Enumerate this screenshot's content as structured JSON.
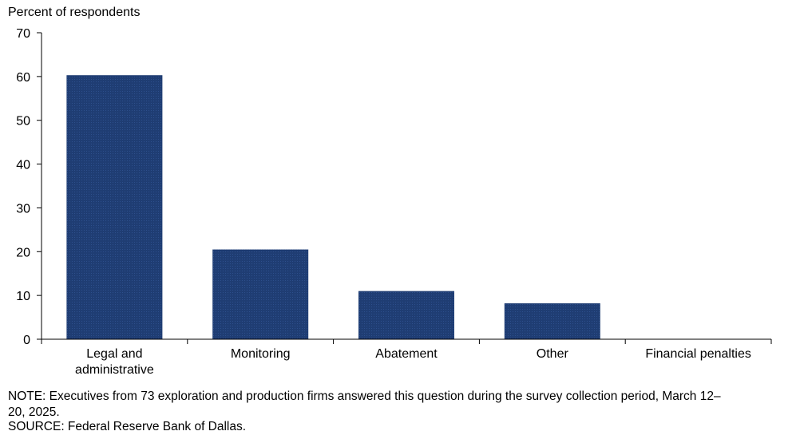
{
  "chart_data": {
    "type": "bar",
    "ylabel": "Percent of respondents",
    "ylim": [
      0,
      70
    ],
    "yticks": [
      0,
      10,
      20,
      30,
      40,
      50,
      60,
      70
    ],
    "categories": [
      [
        "Legal and",
        "administrative"
      ],
      [
        "Monitoring"
      ],
      [
        "Abatement"
      ],
      [
        "Other"
      ],
      [
        "Financial penalties"
      ]
    ],
    "values": [
      60.3,
      20.5,
      11.0,
      8.2,
      0
    ],
    "bar_color": "#1f3d73",
    "grid": false
  },
  "notes": {
    "line1": "NOTE:  Executives  from 73 exploration  and production firms answered this question  during the survey collection period, March 12–",
    "line2": "20, 2025.",
    "line3": "SOURCE:  Federal Reserve Bank of Dallas."
  }
}
